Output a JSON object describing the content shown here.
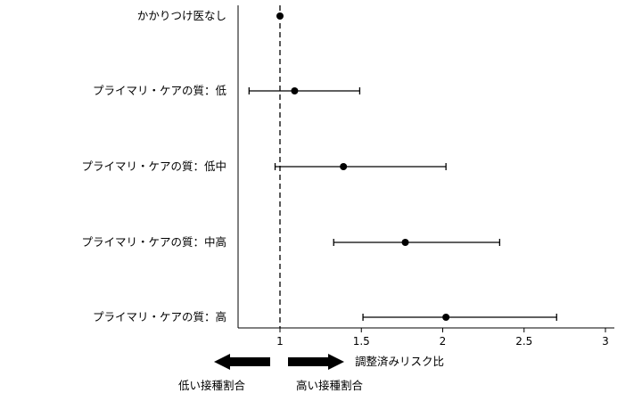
{
  "chart_data": {
    "type": "forest",
    "xlabel": "調整済みリスク比",
    "xlim": [
      0.75,
      3.05
    ],
    "xticks": [
      1,
      1.5,
      2,
      2.5,
      3
    ],
    "xtick_labels": [
      "1",
      "1.5",
      "2",
      "2.5",
      "3"
    ],
    "reference_line": 1,
    "rows": [
      {
        "label": "かかりつけ医なし",
        "estimate": 1.0,
        "lower": null,
        "upper": null
      },
      {
        "label": "プライマリ・ケアの質：低",
        "estimate": 1.09,
        "lower": 0.81,
        "upper": 1.49
      },
      {
        "label": "プライマリ・ケアの質：低中",
        "estimate": 1.39,
        "lower": 0.97,
        "upper": 2.02
      },
      {
        "label": "プライマリ・ケアの質：中高",
        "estimate": 1.77,
        "lower": 1.33,
        "upper": 2.35
      },
      {
        "label": "プライマリ・ケアの質：高",
        "estimate": 2.02,
        "lower": 1.51,
        "upper": 2.7
      }
    ],
    "arrows": {
      "left_label": "低い接種割合",
      "right_label": "高い接種割合"
    }
  }
}
